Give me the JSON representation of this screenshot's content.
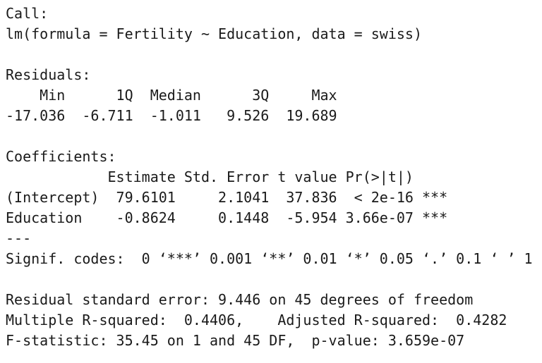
{
  "app": {
    "background_color": "#ffffff",
    "text_color": "#1a1a1a"
  },
  "r_summary": {
    "call": {
      "heading": "Call:",
      "code_line": "lm(formula = Fertility ~ Education, data = swiss)",
      "formula": "Fertility ~ Education",
      "dataset": "swiss"
    },
    "residuals": {
      "heading": "Residuals:",
      "header_line": "    Min      1Q  Median      3Q     Max",
      "values_line": "-17.036  -6.711  -1.011   9.526  19.689",
      "min": -17.036,
      "q1": -6.711,
      "median": -1.011,
      "q3": 9.526,
      "max": 19.689
    },
    "coefficients": {
      "heading": "Coefficients:",
      "header_line": "            Estimate Std. Error t value Pr(>|t|)",
      "intercept_line": "(Intercept)  79.6101     2.1041  37.836  < 2e-16 ***",
      "education_line": "Education    -0.8624     0.1448  -5.954 3.66e-07 ***",
      "rows": [
        {
          "term": "(Intercept)",
          "estimate": 79.6101,
          "std_error": 2.1041,
          "t_value": 37.836,
          "p_value": "< 2e-16",
          "signif": "***"
        },
        {
          "term": "Education",
          "estimate": -0.8624,
          "std_error": 0.1448,
          "t_value": -5.954,
          "p_value": "3.66e-07",
          "signif": "***"
        }
      ],
      "separator_line": "---",
      "signif_codes_line": "Signif. codes:  0 ‘***’ 0.001 ‘**’ 0.01 ‘*’ 0.05 ‘.’ 0.1 ‘ ’ 1"
    },
    "fit": {
      "residual_se_line": "Residual standard error: 9.446 on 45 degrees of freedom",
      "r_squared_line": "Multiple R-squared:  0.4406,    Adjusted R-squared:  0.4282",
      "f_statistic_line": "F-statistic: 35.45 on 1 and 45 DF,  p-value: 3.659e-07",
      "residual_standard_error": 9.446,
      "degrees_of_freedom": 45,
      "multiple_r_squared": 0.4406,
      "adjusted_r_squared": 0.4282,
      "f_statistic": 35.45,
      "f_df1": 1,
      "f_df2": 45,
      "p_value": "3.659e-07"
    }
  }
}
